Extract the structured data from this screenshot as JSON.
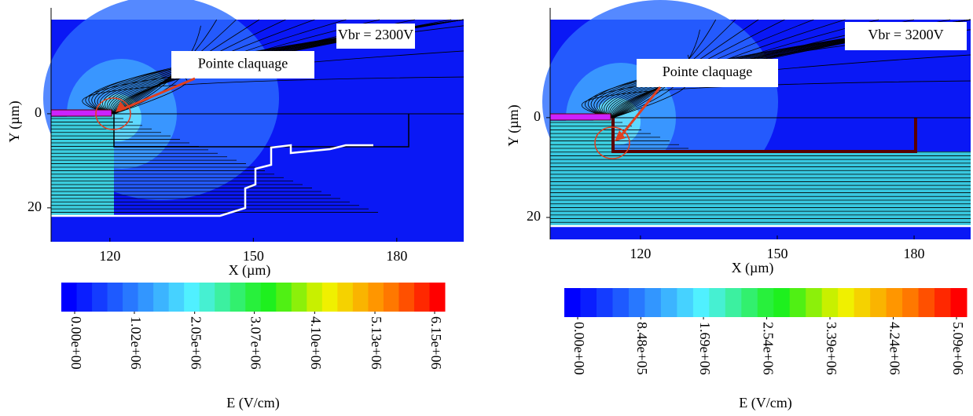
{
  "chart_data": [
    {
      "type": "contour",
      "annotation": "Vbr = 2300V",
      "callout": "Pointe claquage",
      "xlabel": "X (µm)",
      "ylabel": "Y (µm)",
      "xlim": [
        107.7,
        194
      ],
      "ylim": [
        -22.5,
        27.2
      ],
      "xticks": [
        120,
        150,
        180
      ],
      "yticks": [
        0,
        20
      ],
      "colorbar": {
        "label": "E (V/cm)",
        "clim": [
          0,
          6150000
        ],
        "ticks": [
          {
            "value": 0,
            "label": "0.00e+00"
          },
          {
            "value": 1020000,
            "label": "1.02e+06"
          },
          {
            "value": 2050000,
            "label": "2.05e+06"
          },
          {
            "value": 3070000,
            "label": "3.07e+06"
          },
          {
            "value": 4100000,
            "label": "4.10e+06"
          },
          {
            "value": 5130000,
            "label": "5.13e+06"
          },
          {
            "value": 6150000,
            "label": "6.15e+06"
          }
        ],
        "colors": [
          "#0000ff",
          "#0a1eff",
          "#143cff",
          "#1e5aff",
          "#2878ff",
          "#3296ff",
          "#3cb4ff",
          "#46d2ff",
          "#50f0ff",
          "#46f0d2",
          "#3cf0a0",
          "#32f06e",
          "#28f03c",
          "#1ef01e",
          "#50f014",
          "#8cf00a",
          "#c8f000",
          "#f0f000",
          "#f5d200",
          "#fab400",
          "#ff9600",
          "#ff7800",
          "#ff5000",
          "#ff2800",
          "#ff0000"
        ]
      }
    },
    {
      "type": "contour",
      "annotation": "Vbr = 3200V",
      "callout": "Pointe claquage",
      "xlabel": "X (µm)",
      "ylabel": "Y (µm)",
      "xlim": [
        100.2,
        192.4
      ],
      "ylim": [
        -22,
        24.4
      ],
      "xticks": [
        120,
        150,
        180
      ],
      "yticks": [
        0,
        20
      ],
      "colorbar": {
        "label": "E (V/cm)",
        "clim": [
          0,
          5090000
        ],
        "ticks": [
          {
            "value": 0,
            "label": "0.00e+00"
          },
          {
            "value": 848000,
            "label": "8.48e+05"
          },
          {
            "value": 1690000,
            "label": "1.69e+06"
          },
          {
            "value": 2540000,
            "label": "2.54e+06"
          },
          {
            "value": 3390000,
            "label": "3.39e+06"
          },
          {
            "value": 4240000,
            "label": "4.24e+06"
          },
          {
            "value": 5090000,
            "label": "5.09e+06"
          }
        ],
        "colors": [
          "#0000ff",
          "#0a1eff",
          "#143cff",
          "#1e5aff",
          "#2878ff",
          "#3296ff",
          "#3cb4ff",
          "#46d2ff",
          "#50f0ff",
          "#46f0d2",
          "#3cf0a0",
          "#32f06e",
          "#28f03c",
          "#1ef01e",
          "#50f014",
          "#8cf00a",
          "#c8f000",
          "#f0f000",
          "#f5d200",
          "#fab400",
          "#ff9600",
          "#ff7800",
          "#ff5000",
          "#ff2800",
          "#ff0000"
        ]
      }
    }
  ]
}
